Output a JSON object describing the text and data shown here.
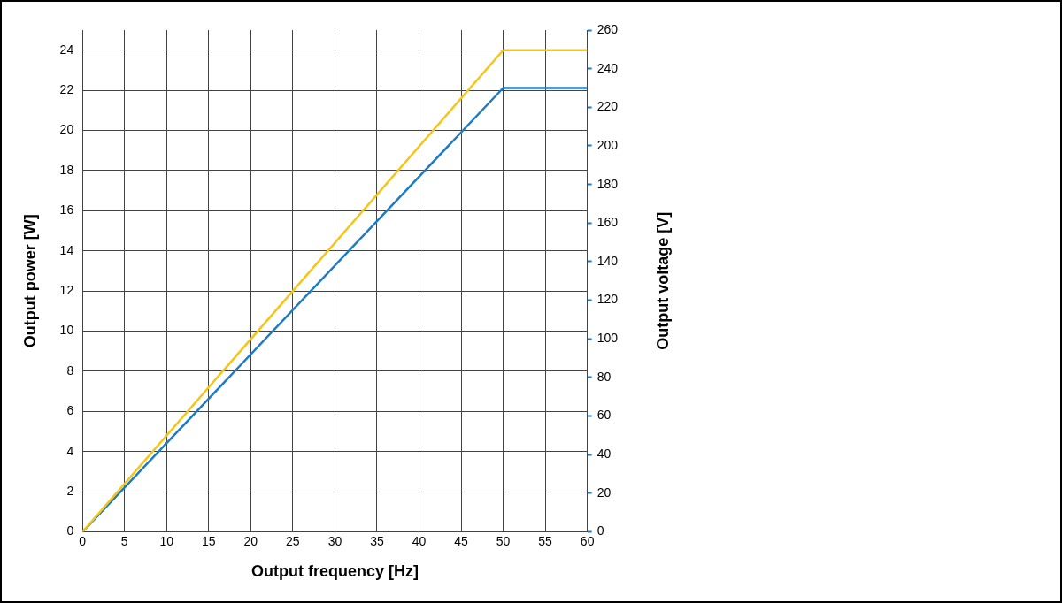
{
  "chart_data": {
    "type": "line",
    "xlabel": "Output frequency [Hz]",
    "ylabel": "Output power [W]",
    "y2label": "Output voltage [V]",
    "xlim": [
      0,
      60
    ],
    "xticks": [
      0,
      5,
      10,
      15,
      20,
      25,
      30,
      35,
      40,
      45,
      50,
      55,
      60
    ],
    "ylim": [
      0,
      25
    ],
    "yticks": [
      0,
      2,
      4,
      6,
      8,
      10,
      12,
      14,
      16,
      18,
      20,
      22,
      24
    ],
    "y2lim": [
      0,
      260
    ],
    "y2ticks": [
      0,
      20,
      40,
      60,
      80,
      100,
      120,
      140,
      160,
      180,
      200,
      220,
      240,
      260
    ],
    "grid": true,
    "series": [
      {
        "color": "#f5c518",
        "x": [
          0,
          50,
          60
        ],
        "values": [
          0,
          24,
          24
        ]
      },
      {
        "color": "#1f7bc4",
        "x": [
          0,
          50,
          60
        ],
        "values": [
          0,
          230,
          230
        ],
        "axis": "y2"
      }
    ]
  }
}
